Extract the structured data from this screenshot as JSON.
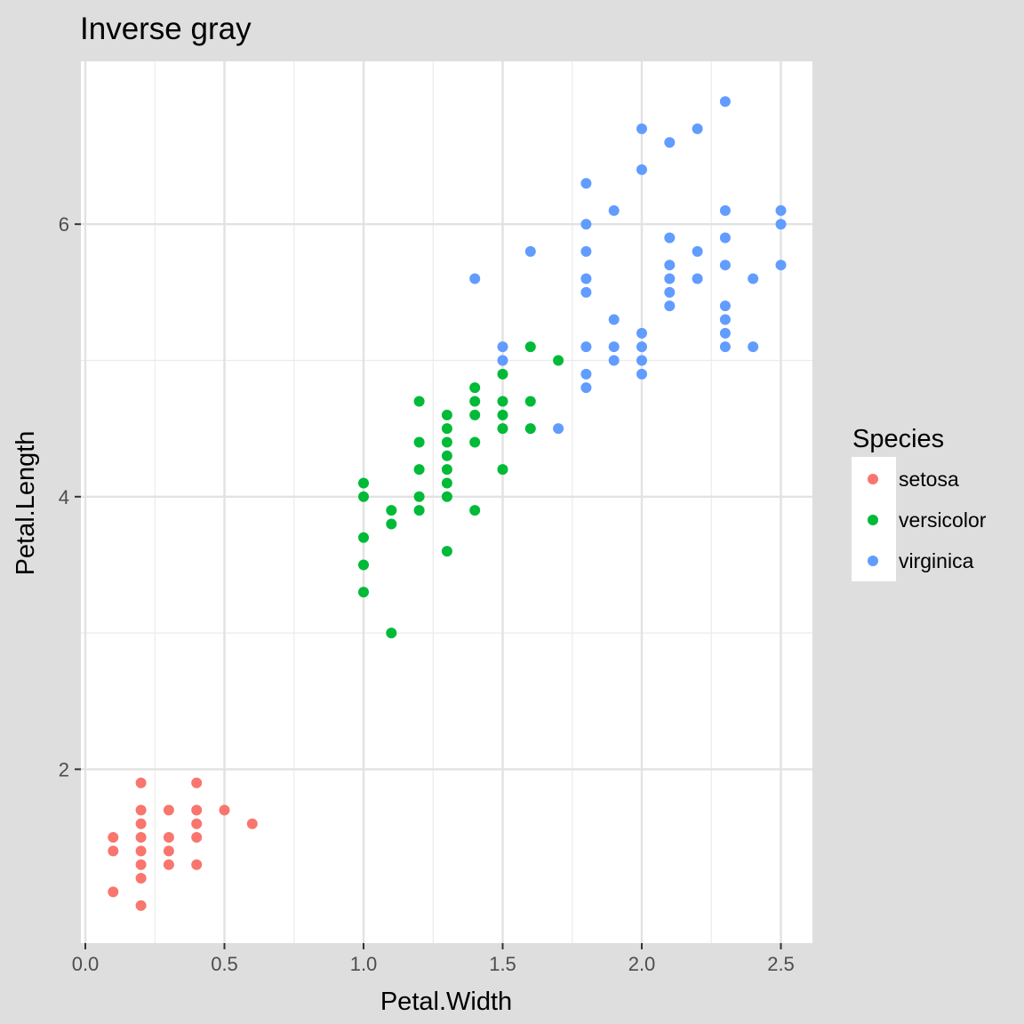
{
  "chart_data": {
    "type": "scatter",
    "title": "Inverse gray",
    "xlabel": "Petal.Width",
    "ylabel": "Petal.Length",
    "xlim": [
      0,
      2.6
    ],
    "ylim": [
      0.8,
      7.05
    ],
    "xticks": [
      0.0,
      0.5,
      1.0,
      1.5,
      2.0,
      2.5
    ],
    "xtick_labels": [
      "0.0",
      "0.5",
      "1.0",
      "1.5",
      "2.0",
      "2.5"
    ],
    "yticks": [
      2,
      4,
      6
    ],
    "ytick_labels": [
      "2",
      "4",
      "6"
    ],
    "grid": true,
    "legend": {
      "title": "Species",
      "placement": "right"
    },
    "series": [
      {
        "name": "setosa",
        "color": "#f8766d",
        "points": [
          [
            0.1,
            1.1
          ],
          [
            0.1,
            1.4
          ],
          [
            0.1,
            1.5
          ],
          [
            0.2,
            1.0
          ],
          [
            0.2,
            1.2
          ],
          [
            0.2,
            1.3
          ],
          [
            0.2,
            1.4
          ],
          [
            0.2,
            1.5
          ],
          [
            0.2,
            1.6
          ],
          [
            0.2,
            1.7
          ],
          [
            0.2,
            1.9
          ],
          [
            0.3,
            1.3
          ],
          [
            0.3,
            1.4
          ],
          [
            0.3,
            1.5
          ],
          [
            0.3,
            1.7
          ],
          [
            0.4,
            1.3
          ],
          [
            0.4,
            1.5
          ],
          [
            0.4,
            1.6
          ],
          [
            0.4,
            1.7
          ],
          [
            0.4,
            1.9
          ],
          [
            0.5,
            1.7
          ],
          [
            0.6,
            1.6
          ]
        ]
      },
      {
        "name": "versicolor",
        "color": "#00ba38",
        "points": [
          [
            1.0,
            3.3
          ],
          [
            1.0,
            3.5
          ],
          [
            1.0,
            3.7
          ],
          [
            1.0,
            4.0
          ],
          [
            1.0,
            4.1
          ],
          [
            1.1,
            3.0
          ],
          [
            1.1,
            3.8
          ],
          [
            1.1,
            3.9
          ],
          [
            1.2,
            3.9
          ],
          [
            1.2,
            4.0
          ],
          [
            1.2,
            4.2
          ],
          [
            1.2,
            4.4
          ],
          [
            1.2,
            4.7
          ],
          [
            1.3,
            3.6
          ],
          [
            1.3,
            4.0
          ],
          [
            1.3,
            4.1
          ],
          [
            1.3,
            4.2
          ],
          [
            1.3,
            4.3
          ],
          [
            1.3,
            4.4
          ],
          [
            1.3,
            4.5
          ],
          [
            1.3,
            4.6
          ],
          [
            1.4,
            3.9
          ],
          [
            1.4,
            4.4
          ],
          [
            1.4,
            4.6
          ],
          [
            1.4,
            4.7
          ],
          [
            1.4,
            4.8
          ],
          [
            1.5,
            4.2
          ],
          [
            1.5,
            4.5
          ],
          [
            1.5,
            4.6
          ],
          [
            1.5,
            4.7
          ],
          [
            1.5,
            4.9
          ],
          [
            1.6,
            4.5
          ],
          [
            1.6,
            4.7
          ],
          [
            1.6,
            5.1
          ],
          [
            1.7,
            5.0
          ]
        ]
      },
      {
        "name": "virginica",
        "color": "#619cff",
        "points": [
          [
            1.4,
            5.6
          ],
          [
            1.5,
            5.0
          ],
          [
            1.5,
            5.1
          ],
          [
            1.6,
            5.8
          ],
          [
            1.7,
            4.5
          ],
          [
            1.8,
            4.8
          ],
          [
            1.8,
            4.9
          ],
          [
            1.8,
            5.1
          ],
          [
            1.8,
            5.5
          ],
          [
            1.8,
            5.6
          ],
          [
            1.8,
            5.8
          ],
          [
            1.8,
            6.0
          ],
          [
            1.8,
            6.3
          ],
          [
            1.9,
            5.0
          ],
          [
            1.9,
            5.1
          ],
          [
            1.9,
            5.3
          ],
          [
            1.9,
            6.1
          ],
          [
            2.0,
            4.9
          ],
          [
            2.0,
            5.0
          ],
          [
            2.0,
            5.1
          ],
          [
            2.0,
            5.2
          ],
          [
            2.0,
            6.4
          ],
          [
            2.0,
            6.7
          ],
          [
            2.1,
            5.4
          ],
          [
            2.1,
            5.5
          ],
          [
            2.1,
            5.6
          ],
          [
            2.1,
            5.7
          ],
          [
            2.1,
            5.9
          ],
          [
            2.1,
            6.6
          ],
          [
            2.2,
            5.6
          ],
          [
            2.2,
            5.8
          ],
          [
            2.2,
            6.7
          ],
          [
            2.3,
            5.1
          ],
          [
            2.3,
            5.2
          ],
          [
            2.3,
            5.3
          ],
          [
            2.3,
            5.4
          ],
          [
            2.3,
            5.7
          ],
          [
            2.3,
            5.9
          ],
          [
            2.3,
            6.1
          ],
          [
            2.3,
            6.9
          ],
          [
            2.4,
            5.1
          ],
          [
            2.4,
            5.6
          ],
          [
            2.5,
            5.7
          ],
          [
            2.5,
            6.0
          ],
          [
            2.5,
            6.1
          ]
        ]
      }
    ]
  }
}
